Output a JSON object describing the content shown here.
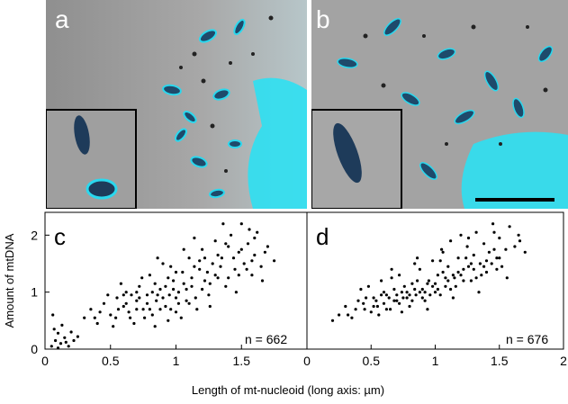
{
  "panels": {
    "a": {
      "label": "a"
    },
    "b": {
      "label": "b"
    },
    "c": {
      "label": "c",
      "n_label": "n = 662"
    },
    "d": {
      "label": "d",
      "n_label": "n = 676"
    }
  },
  "colors": {
    "fluorescence": "#22c8e6",
    "nucleoid_dark": "#1e3b5a",
    "background_gray": "#9a9a9a",
    "dots": "#000000"
  },
  "chart_data": [
    {
      "type": "scatter",
      "panel": "c",
      "ylabel": "Amount of mtDNA",
      "xlabel": "",
      "xlim": [
        0,
        2
      ],
      "ylim": [
        0,
        2.4
      ],
      "xticks": [
        "0",
        "0.5",
        "1",
        "1.5"
      ],
      "yticks": [
        "0",
        "1",
        "2"
      ],
      "n": 662,
      "series": [
        {
          "points": [
            [
              0.05,
              0.05
            ],
            [
              0.08,
              0.15
            ],
            [
              0.1,
              0.28
            ],
            [
              0.12,
              0.1
            ],
            [
              0.15,
              0.2
            ],
            [
              0.07,
              0.35
            ],
            [
              0.18,
              0.05
            ],
            [
              0.2,
              0.3
            ],
            [
              0.13,
              0.42
            ],
            [
              0.06,
              0.6
            ],
            [
              0.22,
              0.15
            ],
            [
              0.1,
              0.02
            ],
            [
              0.16,
              0.12
            ],
            [
              0.25,
              0.22
            ],
            [
              0.3,
              0.55
            ],
            [
              0.35,
              0.7
            ],
            [
              0.4,
              0.45
            ],
            [
              0.45,
              0.8
            ],
            [
              0.5,
              0.6
            ],
            [
              0.55,
              0.9
            ],
            [
              0.6,
              0.75
            ],
            [
              0.62,
              1.0
            ],
            [
              0.65,
              0.55
            ],
            [
              0.7,
              0.85
            ],
            [
              0.72,
              1.1
            ],
            [
              0.75,
              0.7
            ],
            [
              0.78,
              0.95
            ],
            [
              0.8,
              1.3
            ],
            [
              0.82,
              0.6
            ],
            [
              0.85,
              0.85
            ],
            [
              0.88,
              1.05
            ],
            [
              0.9,
              1.5
            ],
            [
              0.92,
              0.75
            ],
            [
              0.95,
              0.95
            ],
            [
              0.98,
              1.2
            ],
            [
              1.0,
              0.65
            ],
            [
              1.02,
              1.0
            ],
            [
              1.05,
              1.35
            ],
            [
              1.08,
              0.85
            ],
            [
              1.1,
              1.6
            ],
            [
              1.12,
              1.1
            ],
            [
              1.15,
              0.9
            ],
            [
              1.18,
              1.4
            ],
            [
              1.2,
              1.75
            ],
            [
              1.22,
              1.2
            ],
            [
              1.25,
              0.95
            ],
            [
              1.28,
              1.5
            ],
            [
              1.3,
              1.9
            ],
            [
              1.32,
              1.25
            ],
            [
              1.35,
              1.6
            ],
            [
              1.38,
              1.1
            ],
            [
              1.4,
              1.8
            ],
            [
              1.42,
              2.0
            ],
            [
              1.45,
              1.4
            ],
            [
              1.48,
              1.7
            ],
            [
              1.5,
              2.2
            ],
            [
              1.52,
              1.5
            ],
            [
              1.55,
              1.85
            ],
            [
              1.58,
              1.3
            ],
            [
              1.6,
              1.65
            ],
            [
              1.62,
              2.05
            ],
            [
              1.65,
              1.45
            ],
            [
              1.7,
              1.8
            ],
            [
              1.75,
              1.55
            ],
            [
              0.68,
              0.45
            ],
            [
              0.74,
              1.25
            ],
            [
              0.86,
              1.6
            ],
            [
              0.94,
              0.5
            ],
            [
              1.06,
              1.75
            ],
            [
              1.16,
              0.7
            ],
            [
              0.58,
              1.15
            ],
            [
              0.48,
              0.95
            ],
            [
              0.52,
              0.4
            ],
            [
              0.66,
              0.95
            ],
            [
              0.84,
              0.4
            ],
            [
              0.96,
              1.45
            ],
            [
              1.04,
              0.55
            ],
            [
              1.14,
              1.95
            ],
            [
              1.26,
              0.75
            ],
            [
              1.36,
              2.2
            ],
            [
              1.46,
              1.0
            ],
            [
              1.56,
              2.1
            ],
            [
              1.66,
              1.2
            ],
            [
              1.24,
              1.35
            ],
            [
              1.02,
              0.8
            ],
            [
              0.9,
              0.9
            ],
            [
              0.78,
              0.8
            ],
            [
              0.7,
              0.7
            ],
            [
              0.84,
              1.15
            ],
            [
              0.98,
              1.05
            ],
            [
              1.12,
              1.25
            ],
            [
              1.2,
              1.05
            ],
            [
              1.34,
              1.45
            ],
            [
              1.44,
              1.6
            ],
            [
              0.6,
              0.95
            ],
            [
              0.64,
              0.65
            ],
            [
              0.76,
              0.55
            ],
            [
              0.88,
              0.7
            ],
            [
              1.0,
              0.9
            ],
            [
              1.1,
              0.8
            ],
            [
              0.82,
              1.0
            ],
            [
              0.92,
              1.1
            ],
            [
              1.06,
              1.15
            ],
            [
              1.18,
              1.55
            ],
            [
              1.3,
              1.3
            ],
            [
              1.4,
              1.25
            ],
            [
              1.5,
              1.75
            ],
            [
              1.6,
              1.95
            ],
            [
              0.42,
              0.65
            ],
            [
              0.56,
              0.7
            ],
            [
              0.38,
              0.55
            ],
            [
              0.72,
              0.9
            ],
            [
              0.86,
              0.95
            ],
            [
              0.96,
              0.7
            ],
            [
              1.08,
              1.05
            ],
            [
              1.22,
              1.6
            ],
            [
              1.32,
              1.65
            ],
            [
              1.54,
              1.4
            ],
            [
              1.68,
              1.7
            ],
            [
              0.94,
              1.25
            ],
            [
              0.8,
              0.7
            ],
            [
              0.7,
              1.0
            ],
            [
              0.62,
              0.8
            ],
            [
              0.54,
              0.55
            ],
            [
              1.0,
              1.35
            ],
            [
              1.14,
              1.45
            ],
            [
              1.26,
              1.15
            ],
            [
              1.38,
              1.85
            ],
            [
              1.48,
              1.3
            ],
            [
              1.58,
              1.55
            ]
          ]
        }
      ]
    },
    {
      "type": "scatter",
      "panel": "d",
      "xlabel": "Length of mt-nucleoid (long axis: µm)",
      "xlim": [
        0,
        2
      ],
      "ylim": [
        0,
        2.4
      ],
      "xticks": [
        "0",
        "0.5",
        "1",
        "1.5",
        "2"
      ],
      "n": 676,
      "series": [
        {
          "points": [
            [
              0.2,
              0.5
            ],
            [
              0.25,
              0.6
            ],
            [
              0.3,
              0.75
            ],
            [
              0.35,
              0.55
            ],
            [
              0.4,
              0.85
            ],
            [
              0.45,
              0.7
            ],
            [
              0.48,
              1.1
            ],
            [
              0.5,
              0.65
            ],
            [
              0.52,
              0.9
            ],
            [
              0.55,
              0.75
            ],
            [
              0.58,
              1.2
            ],
            [
              0.6,
              0.8
            ],
            [
              0.62,
              0.95
            ],
            [
              0.65,
              0.7
            ],
            [
              0.68,
              1.05
            ],
            [
              0.7,
              0.85
            ],
            [
              0.72,
              1.3
            ],
            [
              0.75,
              0.9
            ],
            [
              0.78,
              1.0
            ],
            [
              0.8,
              0.75
            ],
            [
              0.82,
              1.15
            ],
            [
              0.85,
              0.95
            ],
            [
              0.88,
              1.4
            ],
            [
              0.9,
              1.05
            ],
            [
              0.92,
              0.85
            ],
            [
              0.95,
              1.2
            ],
            [
              0.98,
              1.55
            ],
            [
              1.0,
              1.0
            ],
            [
              1.02,
              1.3
            ],
            [
              1.05,
              1.75
            ],
            [
              1.08,
              1.1
            ],
            [
              1.1,
              1.45
            ],
            [
              1.12,
              1.9
            ],
            [
              1.15,
              1.25
            ],
            [
              1.18,
              1.6
            ],
            [
              1.2,
              2.0
            ],
            [
              1.22,
              1.4
            ],
            [
              1.25,
              1.8
            ],
            [
              1.28,
              1.2
            ],
            [
              1.3,
              1.65
            ],
            [
              1.32,
              2.05
            ],
            [
              1.35,
              1.5
            ],
            [
              1.38,
              1.85
            ],
            [
              1.4,
              1.35
            ],
            [
              1.42,
              1.7
            ],
            [
              1.45,
              2.2
            ],
            [
              1.48,
              1.6
            ],
            [
              1.5,
              1.95
            ],
            [
              1.52,
              1.45
            ],
            [
              1.55,
              1.75
            ],
            [
              1.58,
              2.15
            ],
            [
              1.62,
              1.8
            ],
            [
              1.65,
              2.0
            ],
            [
              1.7,
              1.7
            ],
            [
              0.42,
              1.05
            ],
            [
              0.56,
              0.6
            ],
            [
              0.66,
              1.25
            ],
            [
              0.74,
              0.65
            ],
            [
              0.84,
              1.5
            ],
            [
              0.94,
              0.7
            ],
            [
              1.04,
              1.55
            ],
            [
              1.14,
              0.9
            ],
            [
              1.24,
              1.6
            ],
            [
              1.34,
              1.0
            ],
            [
              1.44,
              1.5
            ],
            [
              0.46,
              0.9
            ],
            [
              0.54,
              0.85
            ],
            [
              0.64,
              0.9
            ],
            [
              0.76,
              1.1
            ],
            [
              0.86,
              1.2
            ],
            [
              0.96,
              0.95
            ],
            [
              1.06,
              1.35
            ],
            [
              1.16,
              1.1
            ],
            [
              1.26,
              1.45
            ],
            [
              1.36,
              1.3
            ],
            [
              1.46,
              1.75
            ],
            [
              0.38,
              0.7
            ],
            [
              0.6,
              1.0
            ],
            [
              0.7,
              0.95
            ],
            [
              0.8,
              0.95
            ],
            [
              0.9,
              0.9
            ],
            [
              1.0,
              1.15
            ],
            [
              1.1,
              1.2
            ],
            [
              1.2,
              1.3
            ],
            [
              1.3,
              1.4
            ],
            [
              1.4,
              1.55
            ],
            [
              1.5,
              1.6
            ],
            [
              0.52,
              0.75
            ],
            [
              0.62,
              0.7
            ],
            [
              0.72,
              0.8
            ],
            [
              0.82,
              0.85
            ],
            [
              0.92,
              1.0
            ],
            [
              1.02,
              1.05
            ],
            [
              1.12,
              1.05
            ],
            [
              1.22,
              1.2
            ],
            [
              1.32,
              1.25
            ],
            [
              0.58,
              0.95
            ],
            [
              0.68,
              0.85
            ],
            [
              0.78,
              0.9
            ],
            [
              0.88,
              1.0
            ],
            [
              0.98,
              1.1
            ],
            [
              1.08,
              1.25
            ],
            [
              1.18,
              1.35
            ],
            [
              1.28,
              1.5
            ],
            [
              1.38,
              1.45
            ],
            [
              1.48,
              1.4
            ],
            [
              0.32,
              0.6
            ],
            [
              0.44,
              0.8
            ],
            [
              0.66,
              1.4
            ],
            [
              0.86,
              1.6
            ],
            [
              1.06,
              1.7
            ],
            [
              1.26,
              1.95
            ],
            [
              1.46,
              2.05
            ],
            [
              1.56,
              1.25
            ],
            [
              1.66,
              1.9
            ],
            [
              0.74,
              1.0
            ],
            [
              0.84,
              1.05
            ],
            [
              0.94,
              1.15
            ],
            [
              1.04,
              0.95
            ],
            [
              1.14,
              1.3
            ]
          ]
        }
      ]
    }
  ]
}
